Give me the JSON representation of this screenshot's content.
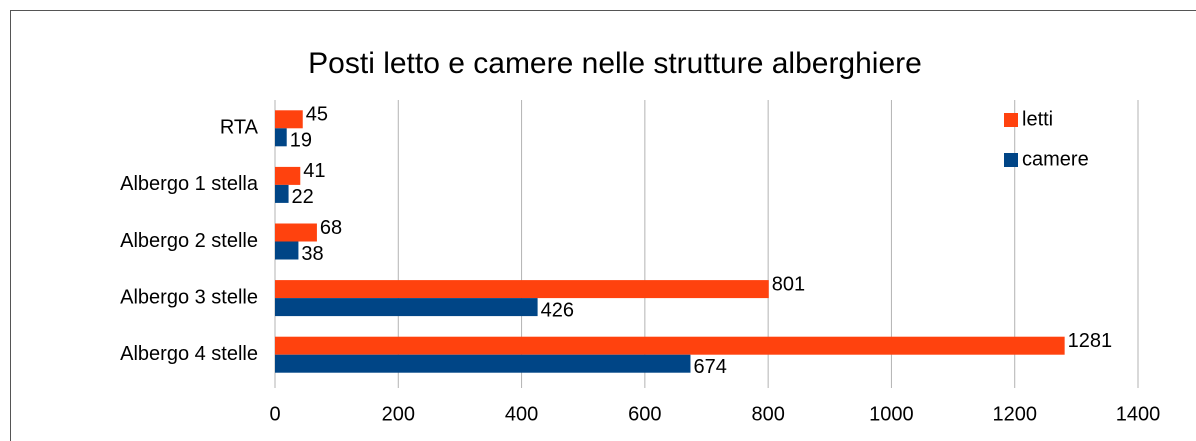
{
  "chart_data": {
    "type": "hbar",
    "title": "Posti letto e camere nelle strutture alberghiere",
    "categories": [
      "RTA",
      "Albergo 1 stella",
      "Albergo 2 stelle",
      "Albergo 3 stelle",
      "Albergo 4 stelle"
    ],
    "series": [
      {
        "name": "letti",
        "color": "#ff420e",
        "values": [
          45,
          41,
          68,
          801,
          1281
        ]
      },
      {
        "name": "camere",
        "color": "#004586",
        "values": [
          19,
          22,
          38,
          426,
          674
        ]
      }
    ],
    "xlim": [
      0,
      1400
    ],
    "xticks": [
      0,
      200,
      400,
      600,
      800,
      1000,
      1200,
      1400
    ],
    "grid": true,
    "legend": "top-right"
  }
}
